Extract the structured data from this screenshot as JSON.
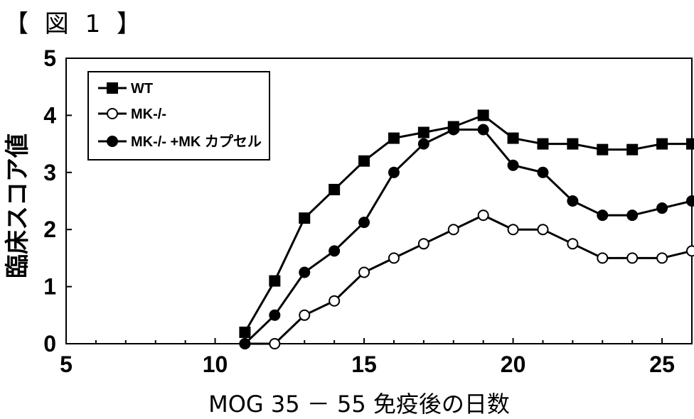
{
  "figure_label": "【 図 1 】",
  "chart_data": {
    "type": "line",
    "title": "",
    "xlabel": "MOG 35 － 55 免疫後の日数",
    "ylabel": "臨床スコア値",
    "xlim": [
      5,
      26
    ],
    "ylim": [
      0,
      5
    ],
    "xticks": [
      5,
      10,
      15,
      20,
      25
    ],
    "yticks": [
      0,
      1,
      2,
      3,
      4,
      5
    ],
    "legend_position": "top-left",
    "grid": false,
    "series": [
      {
        "name": "WT",
        "marker": "filled-square",
        "color": "#000000",
        "x": [
          11,
          12,
          13,
          14,
          15,
          16,
          17,
          18,
          19,
          20,
          21,
          22,
          23,
          24,
          25,
          26
        ],
        "y": [
          0.2,
          1.1,
          2.2,
          2.7,
          3.2,
          3.6,
          3.7,
          3.8,
          4.0,
          3.6,
          3.5,
          3.5,
          3.4,
          3.4,
          3.5,
          3.5
        ]
      },
      {
        "name": "MK-/-",
        "marker": "open-circle",
        "color": "#000000",
        "x": [
          11,
          12,
          13,
          14,
          15,
          16,
          17,
          18,
          19,
          20,
          21,
          22,
          23,
          24,
          25,
          26
        ],
        "y": [
          0,
          0,
          0.5,
          0.75,
          1.25,
          1.5,
          1.75,
          2.0,
          2.25,
          2.0,
          2.0,
          1.75,
          1.5,
          1.5,
          1.5,
          1.625
        ]
      },
      {
        "name": "MK-/- +MK カプセル",
        "marker": "filled-circle",
        "color": "#000000",
        "x": [
          11,
          12,
          13,
          14,
          15,
          16,
          17,
          18,
          19,
          20,
          21,
          22,
          23,
          24,
          25,
          26
        ],
        "y": [
          0,
          0.5,
          1.25,
          1.625,
          2.125,
          3.0,
          3.5,
          3.75,
          3.75,
          3.125,
          3.0,
          2.5,
          2.25,
          2.25,
          2.375,
          2.5
        ]
      }
    ],
    "baseline": {
      "x": [
        5,
        11
      ],
      "y": [
        0,
        0
      ]
    }
  }
}
